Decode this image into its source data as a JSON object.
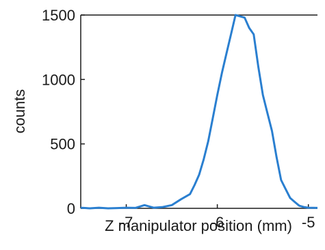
{
  "chart_data": {
    "type": "line",
    "title": "",
    "xlabel": "Z manipulator position (mm)",
    "ylabel": "counts",
    "xlim": [
      -7.5,
      -4.9
    ],
    "ylim": [
      0,
      1500
    ],
    "xticks": [
      -7,
      -6,
      -5
    ],
    "xtick_labels": [
      "-7",
      "-6",
      "-5"
    ],
    "yticks": [
      0,
      500,
      1000,
      1500
    ],
    "ytick_labels": [
      "0",
      "500",
      "1000",
      "1500"
    ],
    "grid": false,
    "legend": "none",
    "series": [
      {
        "color": "#2a7fd0",
        "x": [
          -7.5,
          -7.4,
          -7.3,
          -7.2,
          -7.1,
          -7.0,
          -6.9,
          -6.8,
          -6.7,
          -6.6,
          -6.5,
          -6.4,
          -6.3,
          -6.25,
          -6.2,
          -6.15,
          -6.1,
          -6.05,
          -6.0,
          -5.95,
          -5.9,
          -5.85,
          -5.8,
          -5.75,
          -5.7,
          -5.65,
          -5.6,
          -5.55,
          -5.5,
          -5.45,
          -5.4,
          -5.35,
          -5.3,
          -5.25,
          -5.2,
          -5.15,
          -5.1,
          -5.05,
          -5.0,
          -4.9
        ],
        "y": [
          5,
          0,
          5,
          0,
          2,
          5,
          3,
          25,
          5,
          10,
          25,
          70,
          110,
          180,
          260,
          380,
          520,
          700,
          880,
          1050,
          1200,
          1350,
          1500,
          1490,
          1480,
          1400,
          1350,
          1100,
          880,
          740,
          600,
          400,
          220,
          150,
          80,
          50,
          20,
          10,
          5,
          3
        ]
      }
    ]
  }
}
